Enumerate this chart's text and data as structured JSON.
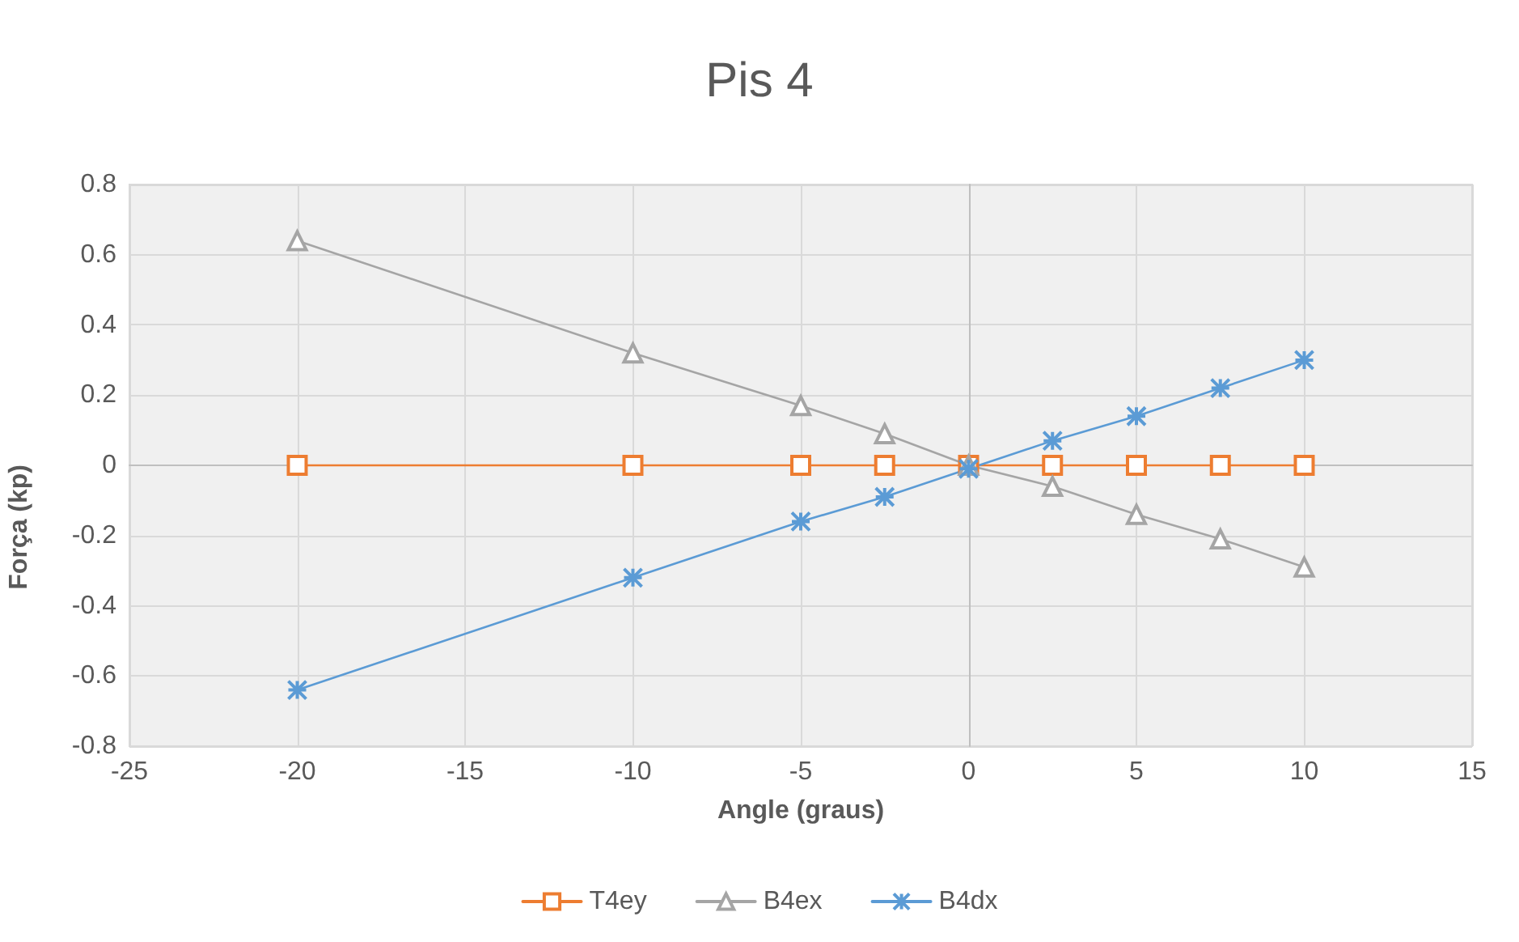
{
  "chart_data": {
    "type": "line",
    "title": "Pis 4",
    "xlabel": "Angle (graus)",
    "ylabel": "Força (kp)",
    "x": [
      -20,
      -10,
      -5,
      -2.5,
      0,
      2.5,
      5,
      7.5,
      10
    ],
    "series": [
      {
        "name": "T4ey",
        "color": "#ed7d31",
        "marker": "square",
        "values": [
          0,
          0,
          0,
          0,
          0,
          0,
          0,
          0,
          0
        ]
      },
      {
        "name": "B4ex",
        "color": "#a5a5a5",
        "marker": "triangle",
        "values": [
          0.64,
          0.32,
          0.17,
          0.09,
          0,
          -0.06,
          -0.14,
          -0.21,
          -0.29
        ]
      },
      {
        "name": "B4dx",
        "color": "#5b9bd5",
        "marker": "cross",
        "values": [
          -0.64,
          -0.32,
          -0.16,
          -0.09,
          -0.01,
          0.07,
          0.14,
          0.22,
          0.3
        ]
      }
    ],
    "xlim": [
      -25,
      15
    ],
    "xticks": [
      -25,
      -20,
      -15,
      -10,
      -5,
      0,
      5,
      10,
      15
    ],
    "ylim": [
      -0.8,
      0.8
    ],
    "yticks": [
      -0.8,
      -0.6,
      -0.4,
      -0.2,
      0,
      0.2,
      0.4,
      0.6,
      0.8
    ],
    "grid": true,
    "legend": "bottom",
    "line_style": "solid"
  }
}
